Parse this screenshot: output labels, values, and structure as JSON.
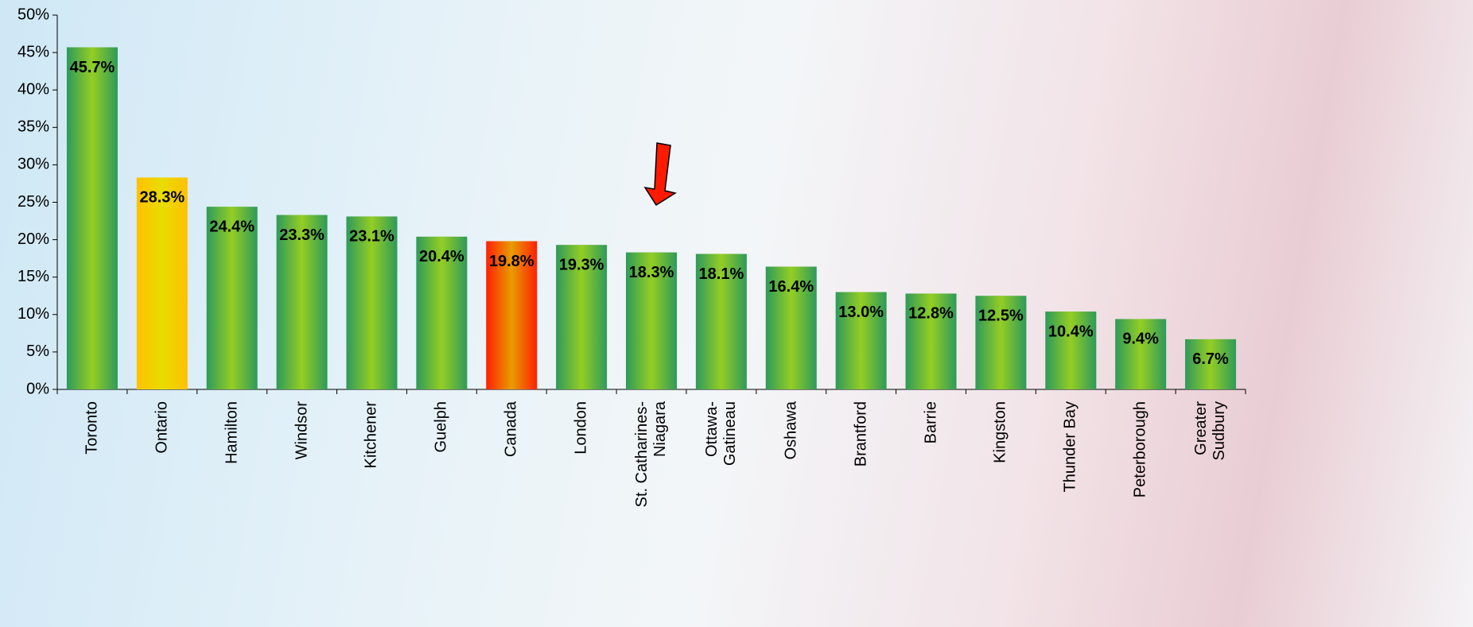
{
  "chart_data": {
    "type": "bar",
    "categories": [
      "Toronto",
      "Ontario",
      "Hamilton",
      "Windsor",
      "Kitchener",
      "Guelph",
      "Canada",
      "London",
      "St. Catharines-\nNiagara",
      "Ottawa-\nGatineau",
      "Oshawa",
      "Brantford",
      "Barrie",
      "Kingston",
      "Thunder Bay",
      "Peterborough",
      "Greater\nSudbury"
    ],
    "values": [
      45.7,
      28.3,
      24.4,
      23.3,
      23.1,
      20.4,
      19.8,
      19.3,
      18.3,
      18.1,
      16.4,
      13.0,
      12.8,
      12.5,
      10.4,
      9.4,
      6.7
    ],
    "value_labels": [
      "45.7%",
      "28.3%",
      "24.4%",
      "23.3%",
      "23.1%",
      "20.4%",
      "19.8%",
      "19.3%",
      "18.3%",
      "18.1%",
      "16.4%",
      "13.0%",
      "12.8%",
      "12.5%",
      "10.4%",
      "9.4%",
      "6.7%"
    ],
    "colors": [
      "#2e9a5a",
      "#ffc000",
      "#2e9a5a",
      "#2e9a5a",
      "#2e9a5a",
      "#2e9a5a",
      "#ff2000",
      "#2e9a5a",
      "#2e9a5a",
      "#2e9a5a",
      "#2e9a5a",
      "#2e9a5a",
      "#2e9a5a",
      "#2e9a5a",
      "#2e9a5a",
      "#2e9a5a",
      "#2e9a5a"
    ],
    "ylim": [
      0,
      50
    ],
    "yticks": [
      {
        "value": 0,
        "label": "0%"
      },
      {
        "value": 5,
        "label": "5%"
      },
      {
        "value": 10,
        "label": "10%"
      },
      {
        "value": 15,
        "label": "15%"
      },
      {
        "value": 20,
        "label": "20%"
      },
      {
        "value": 25,
        "label": "25%"
      },
      {
        "value": 30,
        "label": "30%"
      },
      {
        "value": 35,
        "label": "35%"
      },
      {
        "value": 40,
        "label": "40%"
      },
      {
        "value": 45,
        "label": "45%"
      },
      {
        "value": 50,
        "label": "50%"
      }
    ]
  }
}
